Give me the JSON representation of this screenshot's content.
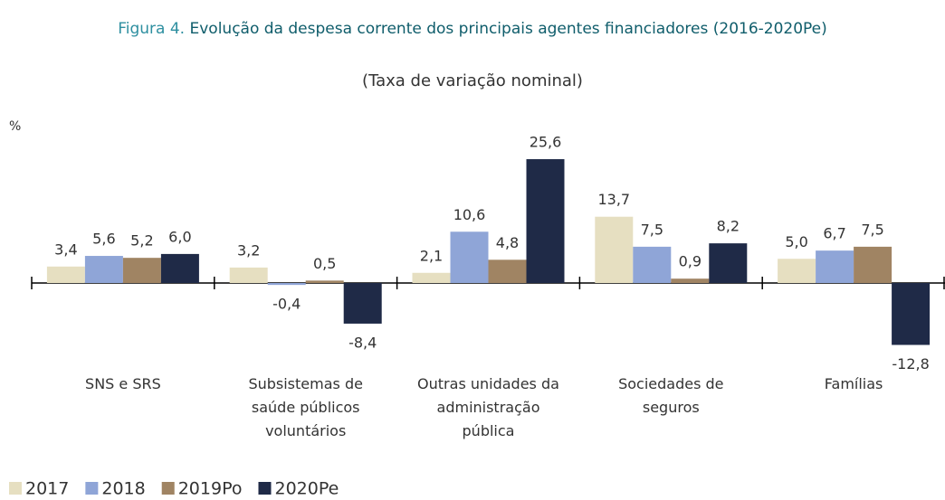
{
  "chart_data": {
    "type": "bar",
    "figure_label": "Figura 4.",
    "title": "Evolução da despesa corrente dos principais agentes financiadores (2016-2020Pe)",
    "subtitle": "(Taxa de variação nominal)",
    "y_label": "%",
    "categories": [
      "SNS e SRS",
      "Subsistemas de\nsaúde públicos\nvoluntários",
      "Outras unidades da\nadministração\npública",
      "Sociedades de\nseguros",
      "Famílias"
    ],
    "series": [
      {
        "name": "2017",
        "color": "#e6dfc1",
        "values": [
          3.4,
          3.2,
          2.1,
          13.7,
          5.0
        ],
        "value_labels": [
          "3,4",
          "3,2",
          "2,1",
          "13,7",
          "5,0"
        ]
      },
      {
        "name": "2018",
        "color": "#8fa5d7",
        "values": [
          5.6,
          -0.4,
          10.6,
          7.5,
          6.7
        ],
        "value_labels": [
          "5,6",
          "-0,4",
          "10,6",
          "7,5",
          "6,7"
        ]
      },
      {
        "name": "2019Po",
        "color": "#a08463",
        "values": [
          5.2,
          0.5,
          4.8,
          0.9,
          7.5
        ],
        "value_labels": [
          "5,2",
          "0,5",
          "4,8",
          "0,9",
          "7,5"
        ]
      },
      {
        "name": "2020Pe",
        "color": "#1f2a47",
        "values": [
          6.0,
          -8.4,
          25.6,
          8.2,
          -12.8
        ],
        "value_labels": [
          "6,0",
          "-8,4",
          "25,6",
          "8,2",
          "-12,8"
        ]
      }
    ],
    "ylim": [
      -20,
      30
    ],
    "legend": "bottom-left"
  }
}
